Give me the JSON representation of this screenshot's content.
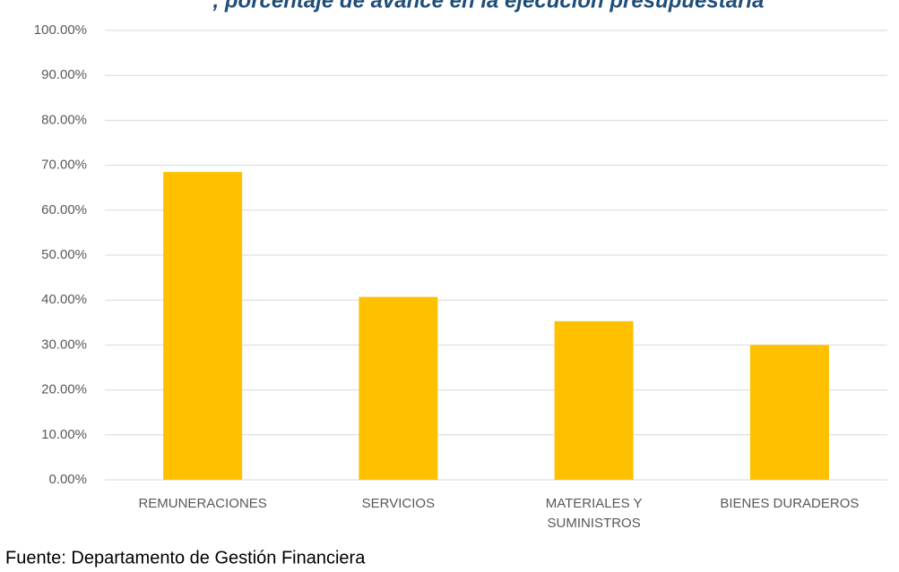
{
  "chart_data": {
    "type": "bar",
    "title": ", porcentaje de avance en la ejecución presupuestaria",
    "categories": [
      "REMUNERACIONES",
      "SERVICIOS",
      "MATERIALES Y SUMINISTROS",
      "BIENES DURADEROS"
    ],
    "values": [
      68.5,
      40.7,
      35.3,
      30.0
    ],
    "color": "#ffc000",
    "ylim": [
      0,
      100
    ],
    "yticks": [
      {
        "value": 0,
        "label": "0.00%"
      },
      {
        "value": 10,
        "label": "10.00%"
      },
      {
        "value": 20,
        "label": "20.00%"
      },
      {
        "value": 30,
        "label": "30.00%"
      },
      {
        "value": 40,
        "label": "40.00%"
      },
      {
        "value": 50,
        "label": "50.00%"
      },
      {
        "value": 60,
        "label": "60.00%"
      },
      {
        "value": 70,
        "label": "70.00%"
      },
      {
        "value": 80,
        "label": "80.00%"
      },
      {
        "value": 90,
        "label": "90.00%"
      },
      {
        "value": 100,
        "label": "100.00%"
      }
    ],
    "grid": true,
    "source": "Fuente: Departamento de Gestión Financiera"
  }
}
